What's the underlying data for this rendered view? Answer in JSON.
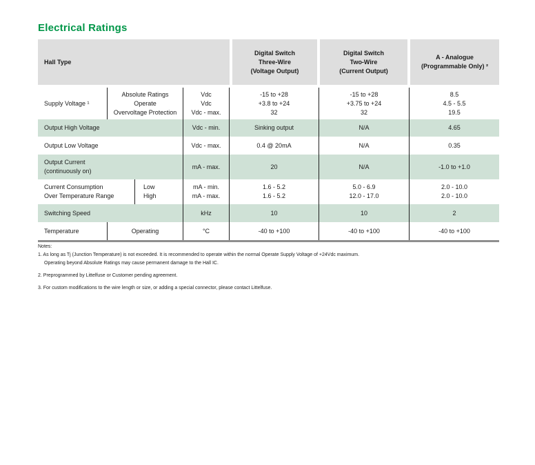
{
  "title": "Electrical Ratings",
  "colors": {
    "accent_green": "#009648",
    "header_bg": "#dedede",
    "row_green_bg": "#cfe1d6",
    "table_bottom_border": "#8e8e8e"
  },
  "table": {
    "header": {
      "hall_type": "Hall Type",
      "three_wire": "Digital Switch\nThree-Wire\n(Voltage Output)",
      "two_wire": "Digital Switch\nTwo-Wire\n(Current Output)",
      "analogue": "A - Analogue\n(Programmable Only) ²"
    },
    "rows": [
      {
        "label": "Supply Voltage ¹",
        "sub": "Absolute Ratings\nOperate\nOvervoltage Protection",
        "units": "Vdc\nVdc\nVdc - max.",
        "three_wire": "-15 to +28\n+3.8 to +24\n32",
        "two_wire": "-15 to +28\n+3.75 to +24\n32",
        "analogue": "8.5\n4.5 - 5.5\n19.5"
      },
      {
        "label": "Output High Voltage",
        "units": "Vdc - min.",
        "three_wire": "Sinking output",
        "two_wire": "N/A",
        "analogue": "4.65"
      },
      {
        "label": "Output Low Voltage",
        "units": "Vdc - max.",
        "three_wire": "0.4 @ 20mA",
        "two_wire": "N/A",
        "analogue": "0.35"
      },
      {
        "label": "Output Current\n(continuously on)",
        "units": "mA - max.",
        "three_wire": "20",
        "two_wire": "N/A",
        "analogue": "-1.0 to +1.0"
      },
      {
        "label": "Current Consumption\nOver Temperature Range",
        "sub": "Low\nHigh",
        "units": "mA - min.\nmA - max.",
        "three_wire": "1.6 - 5.2\n1.6 - 5.2",
        "two_wire": "5.0 - 6.9\n12.0 - 17.0",
        "analogue": "2.0 - 10.0\n2.0 - 10.0"
      },
      {
        "label": "Switching Speed",
        "units": "kHz",
        "three_wire": "10",
        "two_wire": "10",
        "analogue": "2"
      },
      {
        "label": "Temperature",
        "sub": "Operating",
        "units": "°C",
        "three_wire": "-40 to +100",
        "two_wire": "-40 to +100",
        "analogue": "-40 to +100"
      }
    ]
  },
  "notes": {
    "heading": "Notes:",
    "items": [
      "1. As long as Tj (Junction Temperature) is not exceeded. It is recommended to operate within the normal Operate Supply Voltage of +24Vdc maximum.\nOperating beyond Absolute Ratings may cause permanent damage to the Hall IC.",
      "2. Preprogrammed by Littelfuse or Customer pending agreement.",
      "3. For custom modifications to the wire length or size, or adding a special connector, please contact Littelfuse."
    ]
  }
}
